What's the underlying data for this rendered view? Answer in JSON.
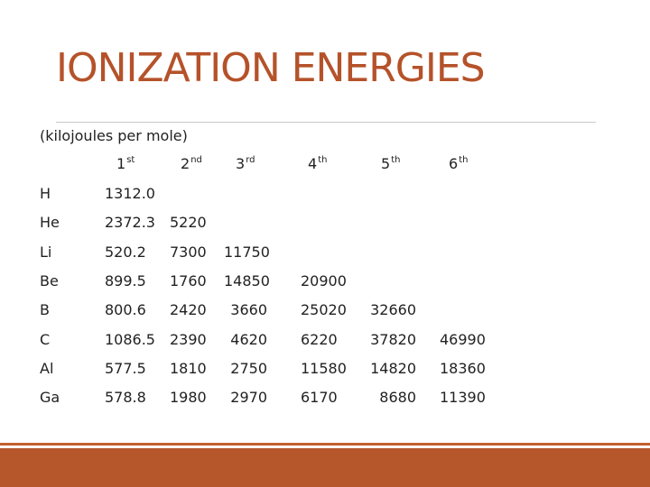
{
  "slide": {
    "title": "IONIZATION ENERGIES",
    "subtitle": "(kilojoules per mole)",
    "accent_color": "#b5522a"
  },
  "table": {
    "headers": [
      {
        "num": "1",
        "suffix": "st"
      },
      {
        "num": "2",
        "suffix": "nd"
      },
      {
        "num": "3",
        "suffix": "rd"
      },
      {
        "num": "4",
        "suffix": "th"
      },
      {
        "num": "5",
        "suffix": "th"
      },
      {
        "num": "6",
        "suffix": "th"
      }
    ],
    "rows": [
      {
        "element": "H",
        "values": [
          "1312.0"
        ]
      },
      {
        "element": "He",
        "values": [
          "2372.3",
          "5220"
        ]
      },
      {
        "element": "Li",
        "values": [
          "520.2",
          "7300",
          "11750"
        ]
      },
      {
        "element": "Be",
        "values": [
          "899.5",
          "1760",
          "14850",
          "20900"
        ]
      },
      {
        "element": "B",
        "values": [
          "800.6",
          "2420",
          "3660",
          "25020",
          "32660"
        ]
      },
      {
        "element": "C",
        "values": [
          "1086.5",
          "2390",
          "4620",
          "6220",
          "37820",
          "46990"
        ]
      },
      {
        "element": "Al",
        "values": [
          "577.5",
          "1810",
          "2750",
          "11580",
          "14820",
          "18360"
        ]
      },
      {
        "element": "Ga",
        "values": [
          "578.8",
          "1980",
          "2970",
          "6170",
          "8680",
          "11390"
        ]
      }
    ]
  }
}
